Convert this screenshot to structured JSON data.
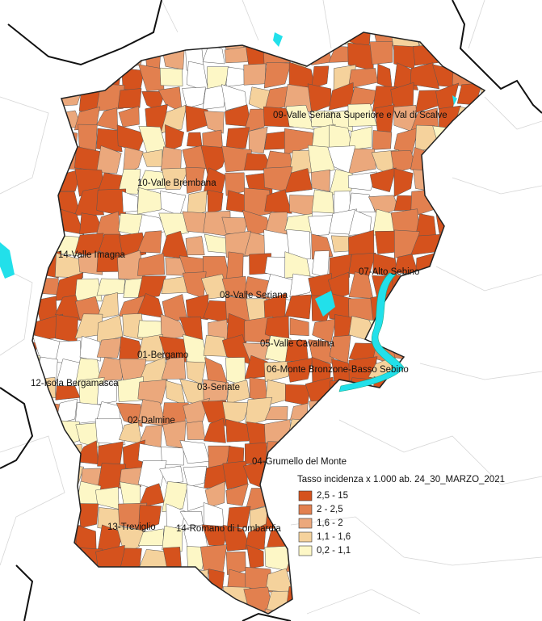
{
  "map": {
    "districts": [
      {
        "label": "09-Valle Seriana Superiore e Val di Scalve"
      },
      {
        "label": "10-Valle Brembana"
      },
      {
        "label": "14-Valle Imagna"
      },
      {
        "label": "07-Alto Sebino"
      },
      {
        "label": "08-Valle Seriana"
      },
      {
        "label": "05-Valle Cavallina"
      },
      {
        "label": "01-Bergamo"
      },
      {
        "label": "06-Monte Bronzone-Basso Sebino"
      },
      {
        "label": "12-Isola Bergamasca"
      },
      {
        "label": "03-Seriate"
      },
      {
        "label": "02-Dalmine"
      },
      {
        "label": "04-Grumello del Monte"
      },
      {
        "label": "13-Treviglio"
      },
      {
        "label": "14-Romano di Lombardia"
      }
    ],
    "legend": {
      "title": "Tasso incidenza x 1.000 ab. 24_30_MARZO_2021",
      "items": [
        {
          "label": "2,5 - 15",
          "color": "#d5521d"
        },
        {
          "label": "2   - 2,5",
          "color": "#e2804f"
        },
        {
          "label": "1,6 -   2",
          "color": "#eba87c"
        },
        {
          "label": "1,1 -  1,6",
          "color": "#f5d29c"
        },
        {
          "label": "0,2 -  1,1",
          "color": "#fdf7c6"
        }
      ]
    }
  }
}
